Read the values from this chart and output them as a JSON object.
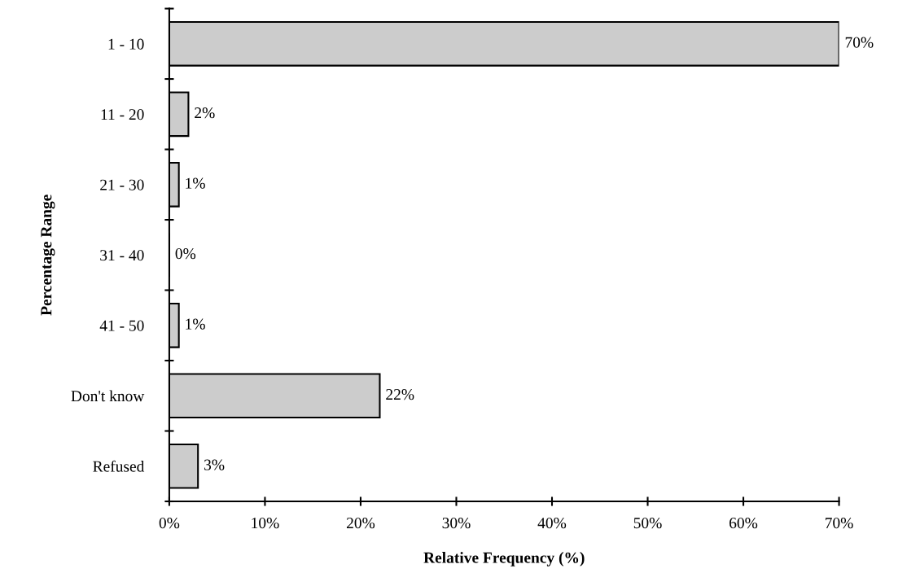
{
  "chart_data": {
    "type": "bar",
    "orientation": "horizontal",
    "categories": [
      "1 - 10",
      "11 - 20",
      "21 - 30",
      "31 - 40",
      "41 - 50",
      "Don't know",
      "Refused"
    ],
    "values": [
      70,
      2,
      1,
      0,
      1,
      22,
      3
    ],
    "value_labels": [
      "70%",
      "2%",
      "1%",
      "0%",
      "1%",
      "22%",
      "3%"
    ],
    "color": "#cccccc",
    "xlabel": "Relative Frequency (%)",
    "ylabel": "Percentage Range",
    "xlim": [
      0,
      70
    ],
    "xticks": [
      {
        "value": 0,
        "label": "0%"
      },
      {
        "value": 10,
        "label": "10%"
      },
      {
        "value": 20,
        "label": "20%"
      },
      {
        "value": 30,
        "label": "30%"
      },
      {
        "value": 40,
        "label": "40%"
      },
      {
        "value": 50,
        "label": "50%"
      },
      {
        "value": 60,
        "label": "60%"
      },
      {
        "value": 70,
        "label": "70%"
      }
    ],
    "grid": false,
    "legend": false
  }
}
